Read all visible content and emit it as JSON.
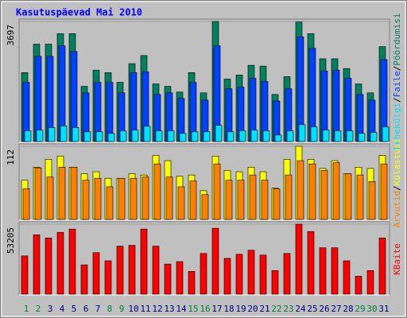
{
  "title": "Kasutuspäevad Mai 2010",
  "legend_separator": "/",
  "chart_data": [
    {
      "type": "bar",
      "ylim": [
        0,
        3697
      ],
      "yticks": [
        3697
      ],
      "series": [
        {
          "name": "Pöördumisi",
          "color": "#00805c",
          "values": [
            2123,
            2998,
            2998,
            3322,
            3322,
            1699,
            2198,
            2123,
            1823,
            2398,
            2648,
            1774,
            1699,
            1524,
            2123,
            1499,
            3697,
            1923,
            2048,
            2348,
            2323,
            1449,
            1998,
            3680,
            3322,
            2548,
            2548,
            2248,
            1774,
            1499,
            2923
          ]
        },
        {
          "name": "Faile",
          "color": "#0040ff",
          "values": [
            1823,
            2623,
            2623,
            2948,
            2773,
            1499,
            1823,
            1823,
            1499,
            2123,
            2148,
            1449,
            1499,
            1324,
            1823,
            1274,
            2948,
            1624,
            1674,
            1948,
            1849,
            1249,
            1624,
            3222,
            2873,
            2173,
            2198,
            1948,
            1449,
            1274,
            2523
          ]
        },
        {
          "name": "Lehekülgi",
          "color": "#00e0ff",
          "values": [
            330,
            350,
            430,
            480,
            430,
            300,
            300,
            250,
            330,
            350,
            470,
            330,
            330,
            250,
            300,
            300,
            500,
            300,
            330,
            350,
            330,
            200,
            330,
            520,
            450,
            350,
            330,
            330,
            250,
            280,
            450
          ]
        }
      ]
    },
    {
      "type": "bar",
      "ylim": [
        0,
        112
      ],
      "yticks": [
        112
      ],
      "series": [
        {
          "name": "Külastusi",
          "color": "#ffff00",
          "values": [
            60,
            80,
            92,
            97,
            80,
            70,
            73,
            63,
            63,
            70,
            68,
            98,
            90,
            66,
            68,
            44,
            97,
            75,
            73,
            80,
            73,
            48,
            92,
            112,
            92,
            78,
            90,
            70,
            80,
            78,
            98
          ]
        },
        {
          "name": "Arvutid",
          "color": "#ff8000",
          "values": [
            47,
            79,
            65,
            80,
            80,
            60,
            63,
            50,
            63,
            63,
            65,
            85,
            65,
            50,
            59,
            38,
            85,
            60,
            60,
            68,
            60,
            47,
            68,
            90,
            85,
            75,
            87,
            70,
            68,
            58,
            85
          ]
        }
      ]
    },
    {
      "type": "bar",
      "ylim": [
        0,
        53205
      ],
      "yticks": [
        53205
      ],
      "categories": [
        "1",
        "2",
        "3",
        "4",
        "5",
        "6",
        "7",
        "8",
        "9",
        "10",
        "11",
        "12",
        "13",
        "14",
        "15",
        "16",
        "17",
        "18",
        "19",
        "20",
        "21",
        "22",
        "23",
        "24",
        "25",
        "26",
        "27",
        "28",
        "29",
        "30",
        "31"
      ],
      "category_colors": [
        "#008040",
        "#008040",
        "#000080",
        "#000080",
        "#000080",
        "#000080",
        "#000080",
        "#008040",
        "#008040",
        "#000080",
        "#000080",
        "#000080",
        "#000080",
        "#000080",
        "#008040",
        "#008040",
        "#000080",
        "#000080",
        "#000080",
        "#000080",
        "#000080",
        "#008040",
        "#008040",
        "#000080",
        "#000080",
        "#000080",
        "#000080",
        "#000080",
        "#008040",
        "#008040",
        "#000080"
      ],
      "series": [
        {
          "name": "KBaite",
          "color": "#ff0000",
          "values": [
            29077,
            45162,
            42688,
            47019,
            49494,
            22272,
            31552,
            25365,
            36501,
            37120,
            49494,
            36501,
            22891,
            24747,
            17323,
            30933,
            50112,
            27221,
            30314,
            33408,
            29696,
            17941,
            30933,
            53205,
            47637,
            35264,
            35264,
            25365,
            13611,
            17941,
            42688
          ]
        }
      ]
    }
  ]
}
